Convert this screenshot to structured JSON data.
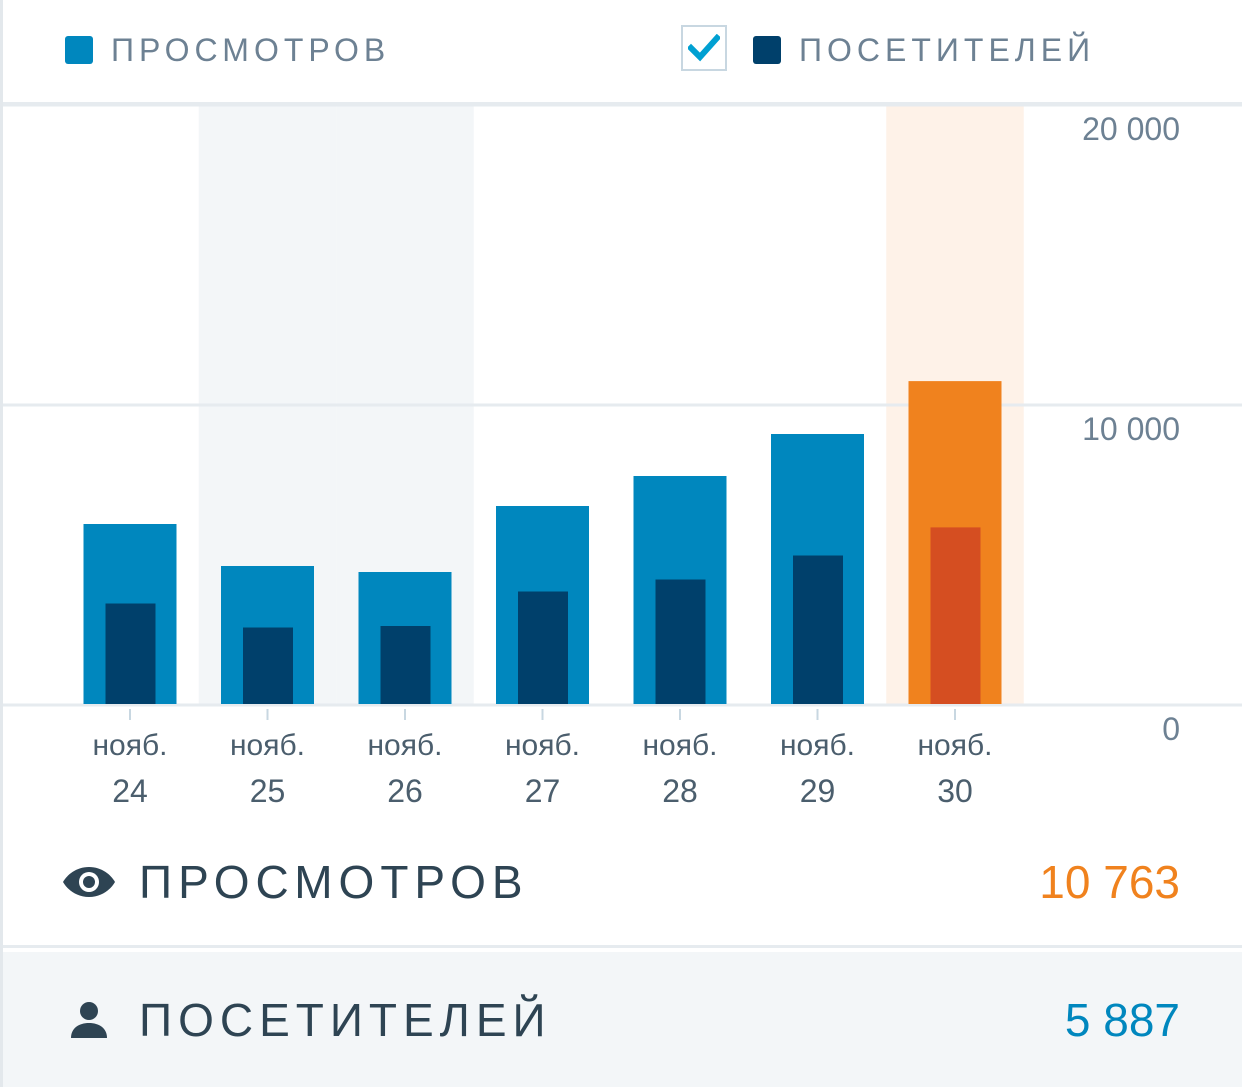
{
  "legend": {
    "views_label": "ПРОСМОТРОВ",
    "visitors_label": "ПОСЕТИТЕЛЕЙ",
    "visitors_checked": true
  },
  "colors": {
    "views": "#0087be",
    "visitors": "#00406b",
    "highlight_views": "#f0821e",
    "highlight_visitors": "#d54e21",
    "weekend_band": "#f3f6f8",
    "highlight_band": "#fef2e8",
    "grid": "#e6ebef",
    "axis_text": "#6d8193",
    "x_text": "#4b5e6d",
    "check": "#00a0d2",
    "label_text": "#2e4453"
  },
  "chart_data": {
    "type": "bar",
    "categories": [
      [
        "нояб.",
        "24"
      ],
      [
        "нояб.",
        "25"
      ],
      [
        "нояб.",
        "26"
      ],
      [
        "нояб.",
        "27"
      ],
      [
        "нояб.",
        "28"
      ],
      [
        "нояб.",
        "29"
      ],
      [
        "нояб.",
        "30"
      ]
    ],
    "series": [
      {
        "name": "ПРОСМОТРОВ",
        "values": [
          6000,
          4600,
          4400,
          6600,
          7600,
          9000,
          10763
        ]
      },
      {
        "name": "ПОСЕТИТЕЛЕЙ",
        "values": [
          3350,
          2550,
          2600,
          3750,
          4150,
          4950,
          5887
        ]
      }
    ],
    "ylim": [
      0,
      20000
    ],
    "yticks": [
      {
        "value": 20000,
        "label": "20 000"
      },
      {
        "value": 10000,
        "label": "10 000"
      },
      {
        "value": 0,
        "label": "0"
      }
    ],
    "weekend_indices": [
      1,
      2
    ],
    "highlight_index": 6,
    "grid": true
  },
  "summary": {
    "views": {
      "label": "ПРОСМОТРОВ",
      "value": "10 763",
      "icon": "eye-icon"
    },
    "visitors": {
      "label": "ПОСЕТИТЕЛЕЙ",
      "value": "5 887",
      "icon": "person-icon"
    }
  }
}
